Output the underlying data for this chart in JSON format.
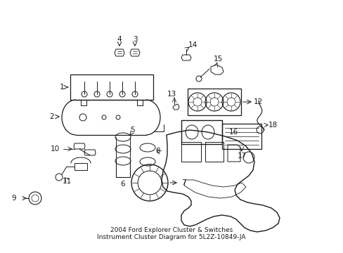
{
  "title": "2004 Ford Explorer Cluster & Switches\nInstrument Cluster Diagram for 5L2Z-10849-JA",
  "bg_color": "#ffffff",
  "line_color": "#1a1a1a",
  "title_fontsize": 6.5,
  "fig_width": 4.89,
  "fig_height": 3.6,
  "dpi": 100
}
